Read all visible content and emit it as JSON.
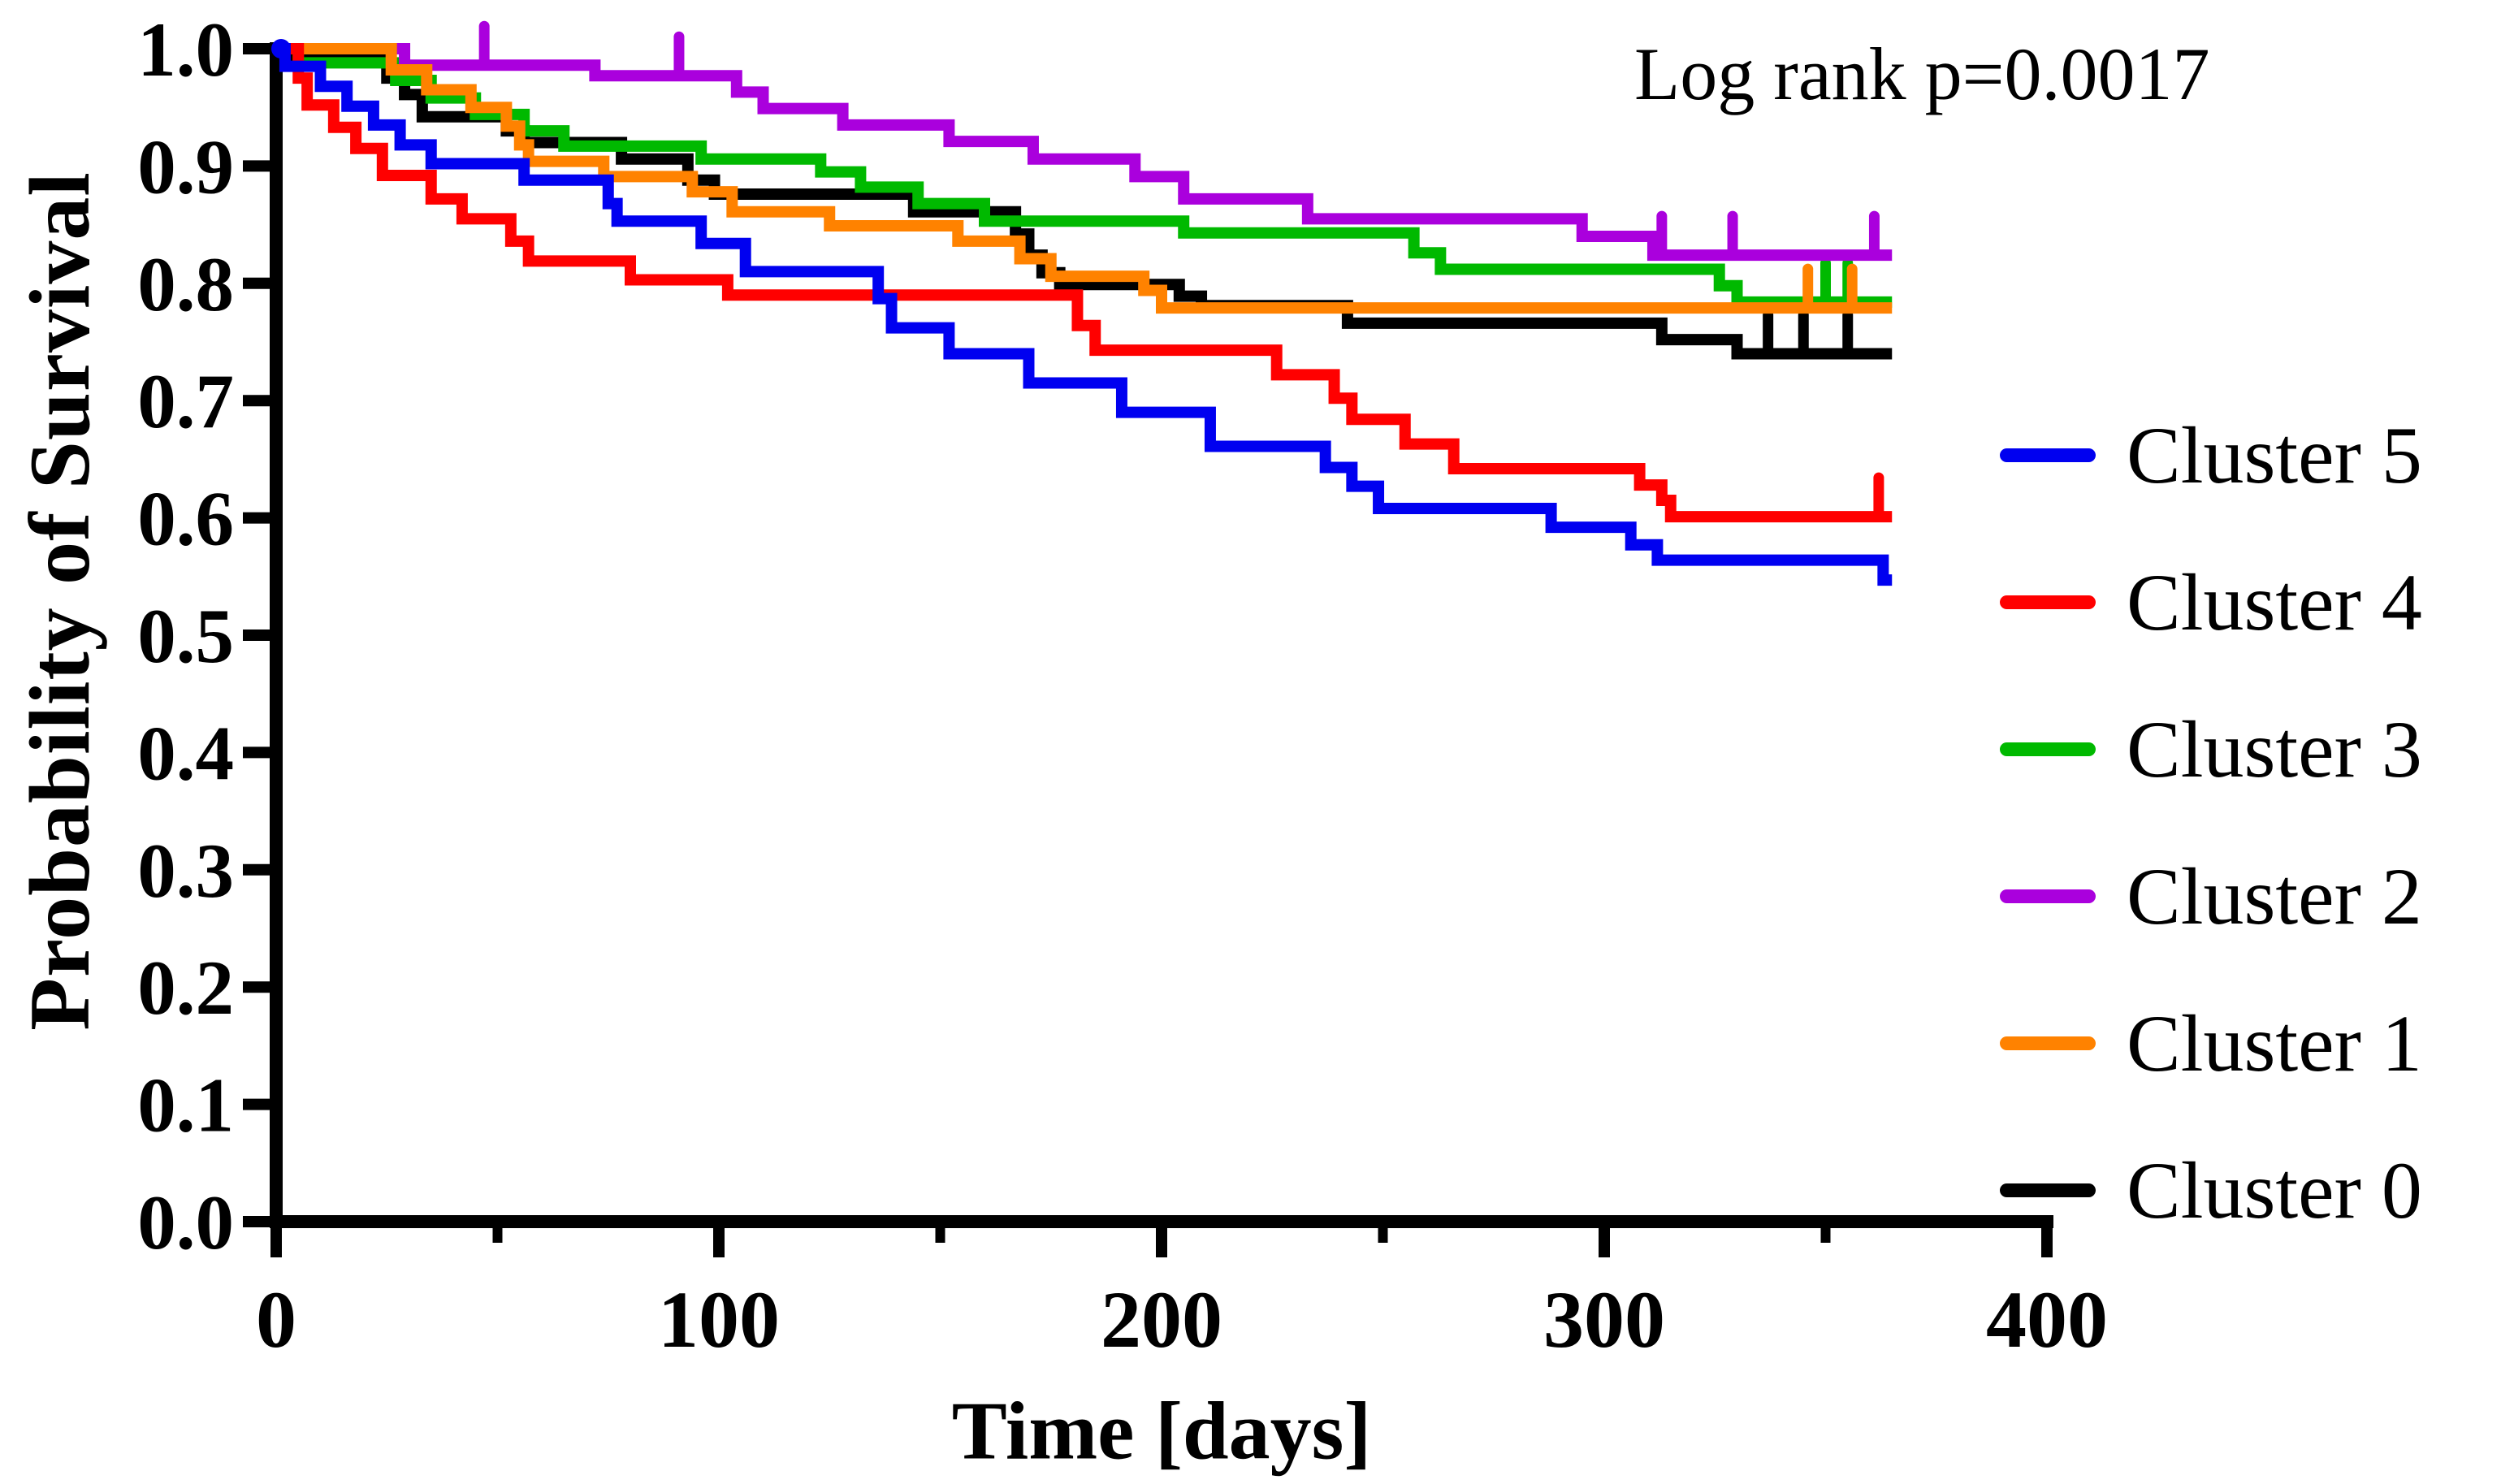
{
  "chart": {
    "annotation": "Log rank p=0.0017",
    "x_title": "Time [days]",
    "y_title": "Probability of Survival"
  },
  "legend": {
    "items": [
      {
        "label": "Cluster 5",
        "color": "#0000f0"
      },
      {
        "label": "Cluster 4",
        "color": "#ff0000"
      },
      {
        "label": "Cluster 3",
        "color": "#00b900"
      },
      {
        "label": "Cluster 2",
        "color": "#aa00dd"
      },
      {
        "label": "Cluster 1",
        "color": "#ff8200"
      },
      {
        "label": "Cluster 0",
        "color": "#000000"
      }
    ]
  },
  "chart_data": {
    "type": "line",
    "subtype": "kaplan-meier-step",
    "title": "",
    "xlabel": "Time [days]",
    "ylabel": "Probability of Survival",
    "annotation": "Log rank p=0.0017",
    "xlim": [
      0,
      400
    ],
    "ylim": [
      0.0,
      1.0
    ],
    "grid": false,
    "legend_position": "right",
    "x_ticks": [
      {
        "v": 0,
        "label": "0"
      },
      {
        "v": 100,
        "label": "100"
      },
      {
        "v": 200,
        "label": "200"
      },
      {
        "v": 300,
        "label": "300"
      },
      {
        "v": 400,
        "label": "400"
      }
    ],
    "x_minor_ticks": [
      50,
      150,
      250,
      350
    ],
    "y_ticks": [
      {
        "v": 1.0,
        "label": "1.0"
      },
      {
        "v": 0.9,
        "label": "0.9"
      },
      {
        "v": 0.8,
        "label": "0.8"
      },
      {
        "v": 0.7,
        "label": "0.7"
      },
      {
        "v": 0.6,
        "label": "0.6"
      },
      {
        "v": 0.5,
        "label": "0.5"
      },
      {
        "v": 0.4,
        "label": "0.4"
      },
      {
        "v": 0.3,
        "label": "0.3"
      },
      {
        "v": 0.2,
        "label": "0.2"
      },
      {
        "v": 0.1,
        "label": "0.1"
      },
      {
        "v": 0.0,
        "label": "0.0"
      }
    ],
    "end_time": 365,
    "series": [
      {
        "name": "Cluster 0",
        "color": "#000000",
        "steps": [
          [
            0,
            1
          ],
          [
            3,
            0.991
          ],
          [
            25,
            0.975
          ],
          [
            29,
            0.961
          ],
          [
            33,
            0.942
          ],
          [
            52,
            0.93
          ],
          [
            56,
            0.92
          ],
          [
            78,
            0.906
          ],
          [
            93,
            0.888
          ],
          [
            99,
            0.876
          ],
          [
            144,
            0.861
          ],
          [
            167,
            0.842
          ],
          [
            170,
            0.824
          ],
          [
            173,
            0.809
          ],
          [
            177,
            0.799
          ],
          [
            204,
            0.789
          ],
          [
            209,
            0.781
          ],
          [
            242,
            0.766
          ],
          [
            313,
            0.752
          ],
          [
            330,
            0.74
          ]
        ],
        "censor_ticks": [
          337,
          345,
          355
        ]
      },
      {
        "name": "Cluster 3",
        "color": "#00b900",
        "steps": [
          [
            0,
            1
          ],
          [
            5,
            0.988
          ],
          [
            27,
            0.973
          ],
          [
            35,
            0.958
          ],
          [
            45,
            0.944
          ],
          [
            56,
            0.93
          ],
          [
            65,
            0.917
          ],
          [
            96,
            0.906
          ],
          [
            123,
            0.895
          ],
          [
            132,
            0.882
          ],
          [
            145,
            0.868
          ],
          [
            160,
            0.853
          ],
          [
            205,
            0.843
          ],
          [
            257,
            0.826
          ],
          [
            263,
            0.812
          ],
          [
            326,
            0.798
          ],
          [
            330,
            0.784
          ]
        ],
        "censor_ticks": [
          350,
          355
        ]
      },
      {
        "name": "Cluster 2",
        "color": "#aa00dd",
        "steps": [
          [
            0,
            1
          ],
          [
            29,
            0.986
          ],
          [
            72,
            0.977
          ],
          [
            104,
            0.963
          ],
          [
            110,
            0.949
          ],
          [
            128,
            0.935
          ],
          [
            152,
            0.921
          ],
          [
            171,
            0.906
          ],
          [
            194,
            0.891
          ],
          [
            205,
            0.872
          ],
          [
            233,
            0.855
          ],
          [
            295,
            0.84
          ],
          [
            311,
            0.824
          ]
        ],
        "censor_ticks": [
          47,
          91,
          313,
          329,
          361
        ]
      },
      {
        "name": "Cluster 1",
        "color": "#ff8200",
        "steps": [
          [
            0,
            1
          ],
          [
            26,
            0.982
          ],
          [
            34,
            0.965
          ],
          [
            44,
            0.95
          ],
          [
            52,
            0.934
          ],
          [
            55,
            0.918
          ],
          [
            57,
            0.904
          ],
          [
            74,
            0.891
          ],
          [
            94,
            0.878
          ],
          [
            103,
            0.861
          ],
          [
            125,
            0.849
          ],
          [
            154,
            0.836
          ],
          [
            168,
            0.821
          ],
          [
            175,
            0.806
          ],
          [
            196,
            0.794
          ],
          [
            200,
            0.779
          ]
        ],
        "censor_ticks": [
          346,
          356
        ]
      },
      {
        "name": "Cluster 4",
        "color": "#ff0000",
        "steps": [
          [
            0,
            1
          ],
          [
            5,
            0.975
          ],
          [
            7,
            0.952
          ],
          [
            13,
            0.933
          ],
          [
            18,
            0.915
          ],
          [
            24,
            0.892
          ],
          [
            35,
            0.872
          ],
          [
            42,
            0.855
          ],
          [
            53,
            0.836
          ],
          [
            57,
            0.819
          ],
          [
            80,
            0.803
          ],
          [
            102,
            0.79
          ],
          [
            181,
            0.764
          ],
          [
            185,
            0.743
          ],
          [
            226,
            0.722
          ],
          [
            239,
            0.702
          ],
          [
            243,
            0.684
          ],
          [
            255,
            0.663
          ],
          [
            266,
            0.642
          ],
          [
            308,
            0.628
          ],
          [
            313,
            0.615
          ],
          [
            315,
            0.601
          ]
        ],
        "censor_ticks": [
          362
        ]
      },
      {
        "name": "Cluster 5",
        "color": "#0000f0",
        "steps": [
          [
            0,
            1
          ],
          [
            2,
            0.985
          ],
          [
            10,
            0.968
          ],
          [
            16,
            0.951
          ],
          [
            22,
            0.935
          ],
          [
            28,
            0.918
          ],
          [
            35,
            0.902
          ],
          [
            56,
            0.888
          ],
          [
            75,
            0.868
          ],
          [
            77,
            0.853
          ],
          [
            96,
            0.834
          ],
          [
            106,
            0.81
          ],
          [
            136,
            0.787
          ],
          [
            139,
            0.762
          ],
          [
            152,
            0.74
          ],
          [
            170,
            0.715
          ],
          [
            191,
            0.69
          ],
          [
            211,
            0.661
          ],
          [
            237,
            0.643
          ],
          [
            243,
            0.627
          ],
          [
            249,
            0.608
          ],
          [
            288,
            0.592
          ],
          [
            306,
            0.577
          ],
          [
            312,
            0.564
          ],
          [
            363,
            0.547
          ]
        ],
        "censor_ticks": [],
        "origin_dot": true
      }
    ]
  }
}
